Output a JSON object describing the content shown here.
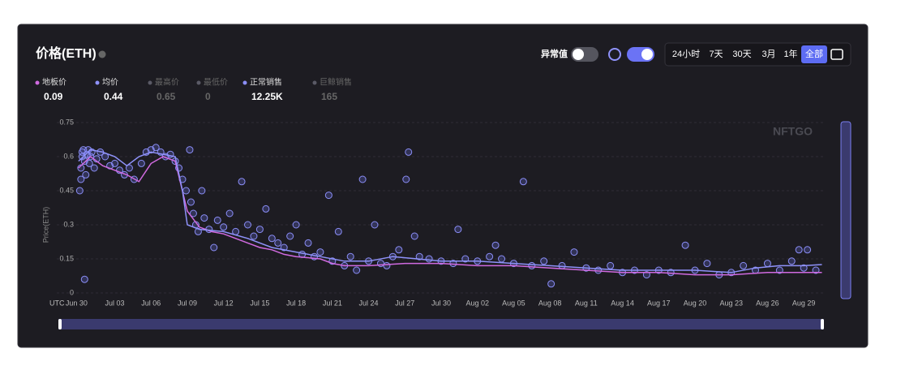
{
  "ui": {
    "title": "价格(ETH)",
    "outlier_label": "异常值",
    "ranges": [
      "24小时",
      "7天",
      "30天",
      "3月",
      "1年",
      "全部"
    ],
    "selected_range": 5,
    "watermark": "NFTGO"
  },
  "chart_data": {
    "type": "scatter",
    "ylabel": "Price(ETH)",
    "timezone": "UTC",
    "xlim": [
      -1.8,
      61.6
    ],
    "ylim": [
      0,
      0.75
    ],
    "yticks": [
      0,
      0.15,
      0.3,
      0.45,
      0.6,
      0.75
    ],
    "grid": true,
    "xticks": [
      {
        "value": 0,
        "label": "Jun 30"
      },
      {
        "value": 3,
        "label": "Jul 03"
      },
      {
        "value": 6,
        "label": "Jul 06"
      },
      {
        "value": 9,
        "label": "Jul 09"
      },
      {
        "value": 12,
        "label": "Jul 12"
      },
      {
        "value": 15,
        "label": "Jul 15"
      },
      {
        "value": 18,
        "label": "Jul 18"
      },
      {
        "value": 21,
        "label": "Jul 21"
      },
      {
        "value": 24,
        "label": "Jul 24"
      },
      {
        "value": 27,
        "label": "Jul 27"
      },
      {
        "value": 30,
        "label": "Jul 30"
      },
      {
        "value": 33,
        "label": "Aug 02"
      },
      {
        "value": 36,
        "label": "Aug 05"
      },
      {
        "value": 39,
        "label": "Aug 08"
      },
      {
        "value": 42,
        "label": "Aug 11"
      },
      {
        "value": 45,
        "label": "Aug 14"
      },
      {
        "value": 48,
        "label": "Aug 17"
      },
      {
        "value": 51,
        "label": "Aug 20"
      },
      {
        "value": 54,
        "label": "Aug 23"
      },
      {
        "value": 57,
        "label": "Aug 26"
      },
      {
        "value": 60,
        "label": "Aug 29"
      }
    ],
    "series": [
      {
        "name": "地板价",
        "kind": "line",
        "color": "#d06ae0",
        "summary": 0.09,
        "x": [
          0,
          1,
          2,
          3,
          4,
          5,
          6,
          7,
          8,
          9,
          10,
          11,
          12,
          13,
          14,
          15,
          16,
          17,
          18,
          20,
          21,
          22,
          24,
          27,
          30,
          33,
          36,
          39,
          42,
          45,
          48,
          51,
          54,
          57,
          60,
          61.5
        ],
        "values": [
          0.55,
          0.6,
          0.56,
          0.54,
          0.52,
          0.49,
          0.57,
          0.6,
          0.58,
          0.36,
          0.29,
          0.27,
          0.26,
          0.24,
          0.22,
          0.2,
          0.19,
          0.17,
          0.16,
          0.15,
          0.13,
          0.12,
          0.12,
          0.13,
          0.13,
          0.12,
          0.12,
          0.11,
          0.1,
          0.09,
          0.09,
          0.08,
          0.08,
          0.09,
          0.09,
          0.09
        ]
      },
      {
        "name": "均价",
        "kind": "line",
        "color": "#8f92fa",
        "summary": 0.44,
        "x": [
          0,
          1,
          2,
          3,
          4,
          5,
          6,
          7,
          8,
          8.6,
          9,
          10,
          12,
          14,
          16,
          18,
          20,
          22,
          24,
          26,
          28,
          30,
          33,
          36,
          39,
          42,
          45,
          48,
          51,
          54,
          56,
          58,
          60,
          61.5
        ],
        "values": [
          0.58,
          0.63,
          0.62,
          0.6,
          0.56,
          0.6,
          0.62,
          0.61,
          0.6,
          0.45,
          0.3,
          0.28,
          0.27,
          0.24,
          0.2,
          0.18,
          0.16,
          0.14,
          0.14,
          0.16,
          0.15,
          0.14,
          0.14,
          0.13,
          0.12,
          0.11,
          0.1,
          0.1,
          0.1,
          0.09,
          0.11,
          0.12,
          0.12,
          0.125
        ]
      },
      {
        "name": "最高价",
        "kind": "hidden",
        "color": "#5a5a66",
        "summary": 0.65,
        "x": [],
        "values": []
      },
      {
        "name": "最低价",
        "kind": "hidden",
        "color": "#5a5a66",
        "summary": 0,
        "x": [],
        "values": []
      },
      {
        "name": "正常销售",
        "kind": "scatter",
        "color": "#8b8ef7",
        "summary": 12250,
        "summary_label": "12.25K",
        "x": [
          0.1,
          0.2,
          0.2,
          0.3,
          0.3,
          0.4,
          0.5,
          0.5,
          0.6,
          0.7,
          0.8,
          0.9,
          1.0,
          1.1,
          1.3,
          1.5,
          1.8,
          2.2,
          2.6,
          3.0,
          3.4,
          3.8,
          4.2,
          4.6,
          5.2,
          5.6,
          6.0,
          6.4,
          6.8,
          7.2,
          7.6,
          8.0,
          8.3,
          8.6,
          8.9,
          9.2,
          9.3,
          9.5,
          9.7,
          9.9,
          10.2,
          10.4,
          10.8,
          11.2,
          11.5,
          12,
          12.5,
          13,
          13.5,
          14,
          14.5,
          15,
          15.5,
          16,
          16.5,
          17,
          17.5,
          18,
          18.5,
          19,
          19.5,
          20,
          20.7,
          21,
          21.5,
          22,
          22.5,
          23,
          23.5,
          24,
          24.5,
          25,
          25.5,
          26,
          26.5,
          27.1,
          27.3,
          27.8,
          28.2,
          29,
          30,
          31,
          31.4,
          32,
          33,
          34,
          34.5,
          35,
          36,
          36.8,
          37.5,
          38.5,
          39.1,
          40,
          41,
          42,
          43,
          44,
          45,
          46,
          47,
          48,
          49,
          50.2,
          51,
          52,
          53,
          54,
          55,
          56,
          57,
          58,
          59,
          59.6,
          60,
          60.3,
          61
        ],
        "values": [
          0.45,
          0.5,
          0.55,
          0.6,
          0.62,
          0.63,
          0.58,
          0.06,
          0.52,
          0.61,
          0.63,
          0.57,
          0.6,
          0.62,
          0.55,
          0.59,
          0.62,
          0.6,
          0.56,
          0.57,
          0.54,
          0.52,
          0.55,
          0.5,
          0.57,
          0.62,
          0.63,
          0.64,
          0.62,
          0.6,
          0.61,
          0.58,
          0.55,
          0.5,
          0.45,
          0.63,
          0.4,
          0.35,
          0.3,
          0.27,
          0.45,
          0.33,
          0.28,
          0.2,
          0.32,
          0.29,
          0.35,
          0.27,
          0.49,
          0.3,
          0.25,
          0.28,
          0.37,
          0.24,
          0.22,
          0.2,
          0.25,
          0.3,
          0.17,
          0.22,
          0.16,
          0.18,
          0.43,
          0.14,
          0.27,
          0.12,
          0.16,
          0.1,
          0.5,
          0.14,
          0.3,
          0.13,
          0.12,
          0.16,
          0.19,
          0.5,
          0.62,
          0.25,
          0.16,
          0.15,
          0.14,
          0.13,
          0.28,
          0.15,
          0.14,
          0.16,
          0.21,
          0.15,
          0.13,
          0.49,
          0.12,
          0.14,
          0.04,
          0.12,
          0.18,
          0.11,
          0.1,
          0.12,
          0.09,
          0.1,
          0.08,
          0.1,
          0.09,
          0.21,
          0.1,
          0.13,
          0.08,
          0.09,
          0.12,
          0.1,
          0.13,
          0.1,
          0.14,
          0.19,
          0.11,
          0.19,
          0.1
        ]
      },
      {
        "name": "巨鲸销售",
        "kind": "hidden",
        "color": "#5a5a66",
        "summary": 165,
        "x": [],
        "values": []
      }
    ]
  }
}
